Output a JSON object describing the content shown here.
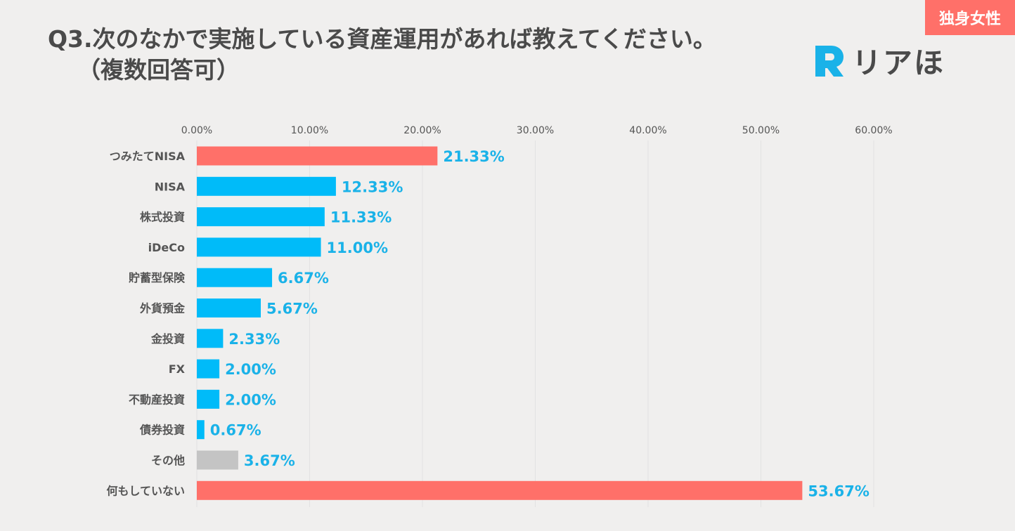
{
  "header": {
    "title_line1": "Q3.次のなかで実施している資産運用があれば教えてください。",
    "title_line2": "（複数回答可）",
    "badge": "独身女性",
    "logo_text": "リアほ",
    "logo_mark": "R"
  },
  "colors": {
    "highlight": "#ff7069",
    "primary": "#00bbf9",
    "other": "#c4c4c4",
    "value_label": "#1ab2e8"
  },
  "chart_data": {
    "type": "bar",
    "orientation": "horizontal",
    "title": "Q3.次のなかで実施している資産運用があれば教えてください。（複数回答可）",
    "categories": [
      "つみたてNISA",
      "NISA",
      "株式投資",
      "iDeCo",
      "貯蓄型保険",
      "外貨預金",
      "金投資",
      "FX",
      "不動産投資",
      "債券投資",
      "その他",
      "何もしていない"
    ],
    "values": [
      21.33,
      12.33,
      11.33,
      11.0,
      6.67,
      5.67,
      2.33,
      2.0,
      2.0,
      0.67,
      3.67,
      53.67
    ],
    "value_labels": [
      "21.33%",
      "12.33%",
      "11.33%",
      "11.00%",
      "6.67%",
      "5.67%",
      "2.33%",
      "2.00%",
      "2.00%",
      "0.67%",
      "3.67%",
      "53.67%"
    ],
    "bar_colors": [
      "highlight",
      "primary",
      "primary",
      "primary",
      "primary",
      "primary",
      "primary",
      "primary",
      "primary",
      "primary",
      "other",
      "highlight"
    ],
    "xlim": [
      0,
      60
    ],
    "xticks": [
      0,
      10,
      20,
      30,
      40,
      50,
      60
    ],
    "xtick_labels": [
      "0.00%",
      "10.00%",
      "20.00%",
      "30.00%",
      "40.00%",
      "50.00%",
      "60.00%"
    ],
    "axis_position": "top",
    "grid": true,
    "legend": false
  }
}
